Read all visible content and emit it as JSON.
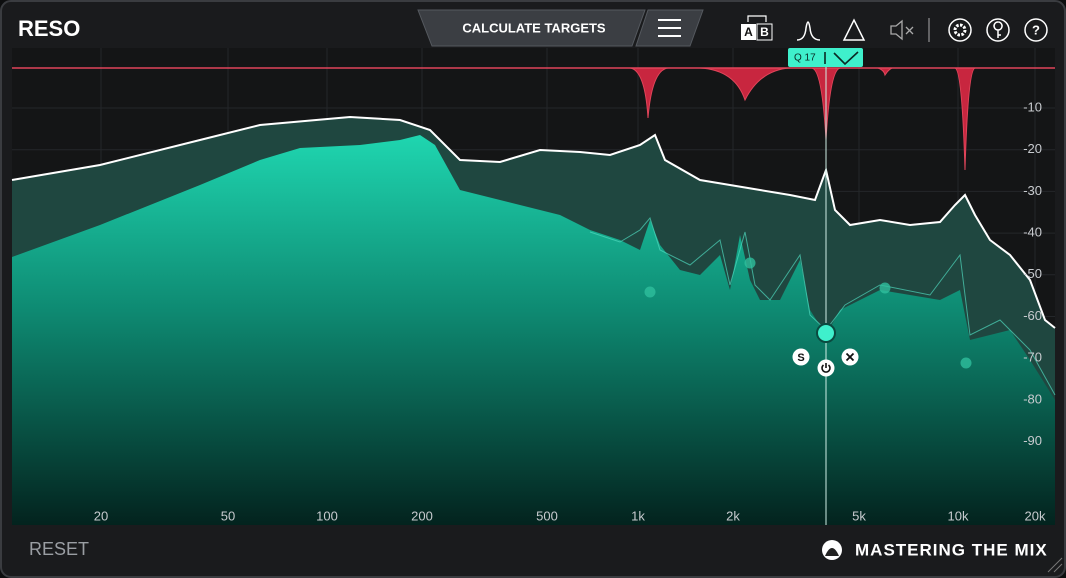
{
  "header": {
    "title": "RESO",
    "calculate_button": "CALCULATE TARGETS",
    "icons": {
      "a": "A",
      "b": "B",
      "help": "?"
    }
  },
  "band_tag": {
    "label": "Q 17"
  },
  "node_controls": {
    "solo": "S"
  },
  "frequency_axis": {
    "labels": [
      "20",
      "50",
      "100",
      "200",
      "500",
      "1k",
      "2k",
      "5k",
      "10k",
      "20k"
    ]
  },
  "level_axis": {
    "labels": [
      "-10",
      "-20",
      "-30",
      "-40",
      "-50",
      "-60",
      "-70",
      "-80",
      "-90"
    ]
  },
  "footer": {
    "reset": "RESET",
    "brand": "MASTERING THE MIX"
  }
}
